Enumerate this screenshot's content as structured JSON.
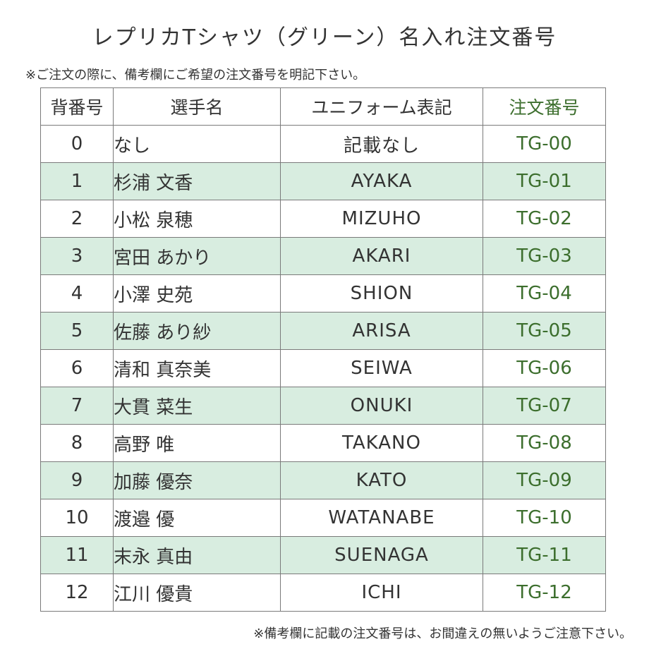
{
  "title": "レプリカTシャツ（グリーン）名入れ注文番号",
  "note_top": "※ご注文の際に、備考欄にご希望の注文番号を明記下さい。",
  "note_bottom": "※備考欄に記載の注文番号は、お間違えの無いようご注意下さい。",
  "colors": {
    "accent_green": "#3c6e2d",
    "row_shade": "#d8ede0",
    "border": "#7a7a7a"
  },
  "table": {
    "headers": {
      "number": "背番号",
      "player": "選手名",
      "uniform": "ユニフォーム表記",
      "order": "注文番号"
    },
    "rows": [
      {
        "number": "0",
        "player": "なし",
        "uniform": "記載なし",
        "order": "TG-00"
      },
      {
        "number": "1",
        "player": "杉浦 文香",
        "uniform": "AYAKA",
        "order": "TG-01"
      },
      {
        "number": "2",
        "player": "小松 泉穂",
        "uniform": "MIZUHO",
        "order": "TG-02"
      },
      {
        "number": "3",
        "player": "宮田 あかり",
        "uniform": "AKARI",
        "order": "TG-03"
      },
      {
        "number": "4",
        "player": "小澤 史苑",
        "uniform": "SHION",
        "order": "TG-04"
      },
      {
        "number": "5",
        "player": "佐藤 あり紗",
        "uniform": "ARISA",
        "order": "TG-05"
      },
      {
        "number": "6",
        "player": "清和 真奈美",
        "uniform": "SEIWA",
        "order": "TG-06"
      },
      {
        "number": "7",
        "player": "大貫 菜生",
        "uniform": "ONUKI",
        "order": "TG-07"
      },
      {
        "number": "8",
        "player": "高野 唯",
        "uniform": "TAKANO",
        "order": "TG-08"
      },
      {
        "number": "9",
        "player": "加藤 優奈",
        "uniform": "KATO",
        "order": "TG-09"
      },
      {
        "number": "10",
        "player": "渡邉 優",
        "uniform": "WATANABE",
        "order": "TG-10"
      },
      {
        "number": "11",
        "player": "末永 真由",
        "uniform": "SUENAGA",
        "order": "TG-11"
      },
      {
        "number": "12",
        "player": "江川 優貴",
        "uniform": "ICHI",
        "order": "TG-12"
      }
    ]
  }
}
